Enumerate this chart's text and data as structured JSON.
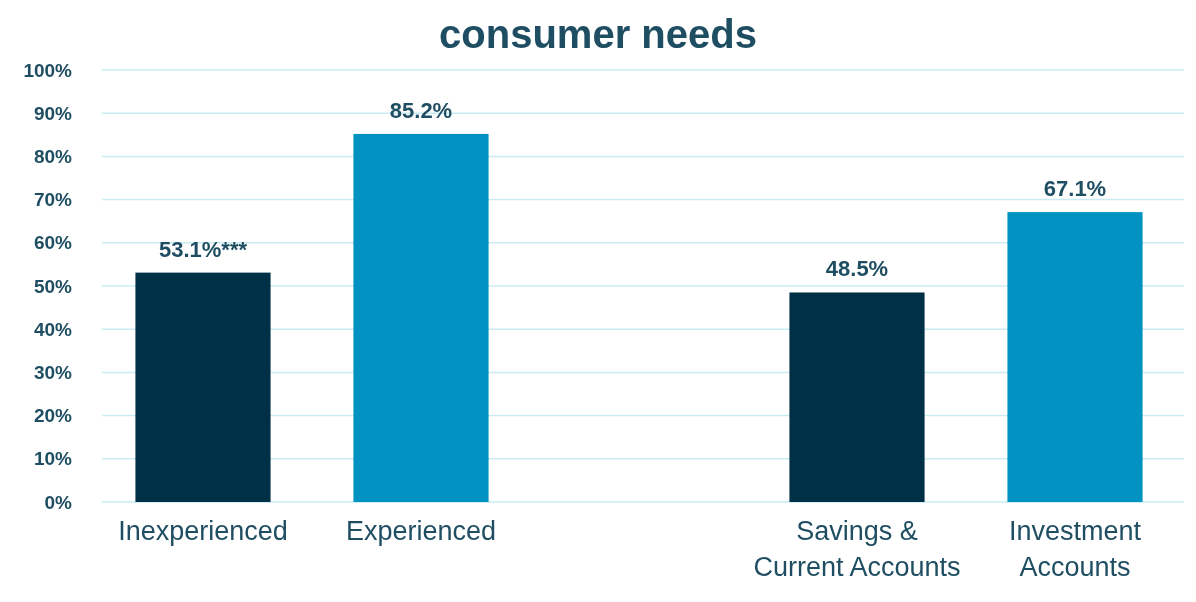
{
  "chart_data": {
    "type": "bar",
    "title": "consumer needs",
    "categories": [
      "Inexperienced",
      "Experienced",
      null,
      "Savings & Current Accounts",
      "Investment Accounts"
    ],
    "values": [
      53.1,
      85.2,
      null,
      48.5,
      67.1
    ],
    "colors": [
      "#003046",
      "#0093c2",
      null,
      "#003046",
      "#0093c2"
    ],
    "value_labels": [
      "53.1%***",
      "85.2%",
      null,
      "48.5%",
      "67.1%"
    ],
    "ylim": [
      0,
      100
    ],
    "yticks": [
      {
        "value": 0,
        "label": "0%"
      },
      {
        "value": 10,
        "label": "10%"
      },
      {
        "value": 20,
        "label": "20%"
      },
      {
        "value": 30,
        "label": "30%"
      },
      {
        "value": 40,
        "label": "40%"
      },
      {
        "value": 50,
        "label": "50%"
      },
      {
        "value": 60,
        "label": "60%"
      },
      {
        "value": 70,
        "label": "70%"
      },
      {
        "value": 80,
        "label": "80%"
      },
      {
        "value": 90,
        "label": "90%"
      },
      {
        "value": 100,
        "label": "100%"
      }
    ],
    "grid": "y"
  }
}
